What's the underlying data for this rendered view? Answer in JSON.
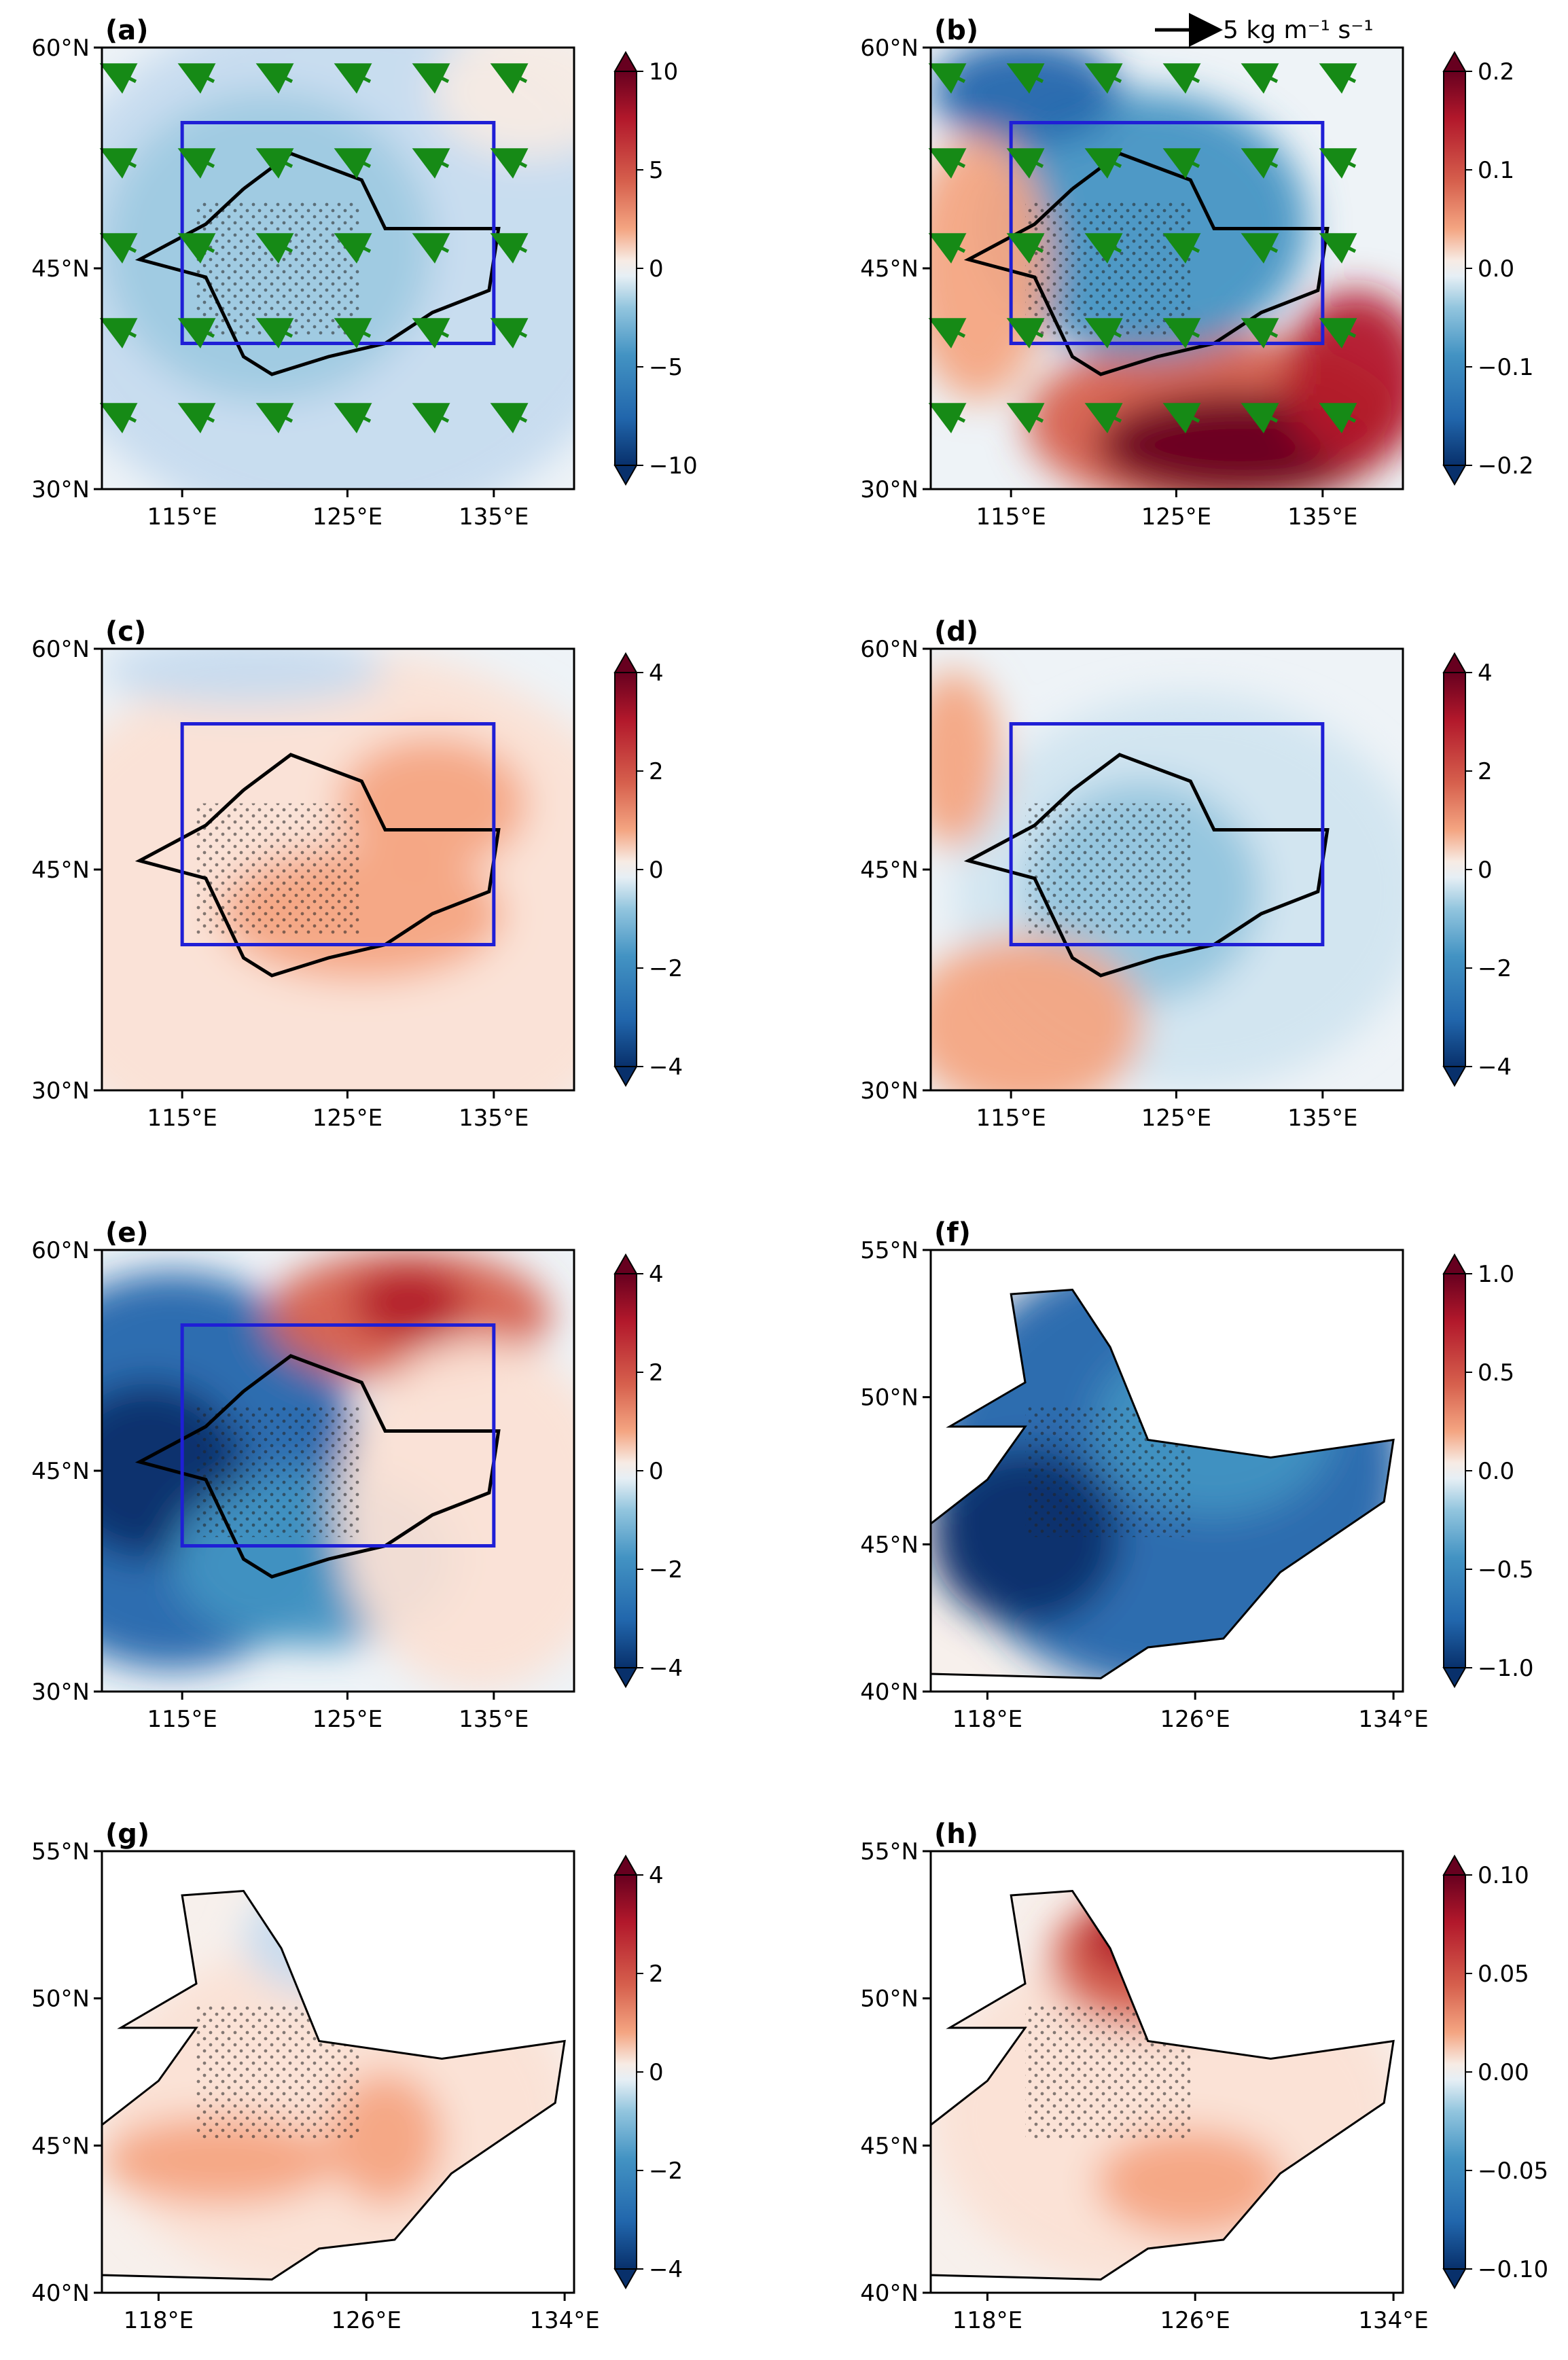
{
  "figure": {
    "vector_scale_label": "5 kg m⁻¹ s⁻¹",
    "panels": [
      {
        "id": "a",
        "label": "(a)",
        "lat_ticks": [
          "60°N",
          "45°N",
          "30°N"
        ],
        "lon_ticks": [
          "115°E",
          "125°E",
          "135°E"
        ],
        "colorbar_ticks": [
          "10",
          "5",
          "0",
          "−5",
          "−10"
        ],
        "theme": "neg",
        "vectors": true,
        "region": "box"
      },
      {
        "id": "b",
        "label": "(b)",
        "lat_ticks": [
          "60°N",
          "45°N",
          "30°N"
        ],
        "lon_ticks": [
          "115°E",
          "125°E",
          "135°E"
        ],
        "colorbar_ticks": [
          "0.2",
          "0.1",
          "0.0",
          "−0.1",
          "−0.2"
        ],
        "theme": "mixed",
        "vectors": true,
        "region": "box"
      },
      {
        "id": "c",
        "label": "(c)",
        "lat_ticks": [
          "60°N",
          "45°N",
          "30°N"
        ],
        "lon_ticks": [
          "115°E",
          "125°E",
          "135°E"
        ],
        "colorbar_ticks": [
          "4",
          "2",
          "0",
          "−2",
          "−4"
        ],
        "theme": "pos",
        "vectors": false,
        "region": "box"
      },
      {
        "id": "d",
        "label": "(d)",
        "lat_ticks": [
          "60°N",
          "45°N",
          "30°N"
        ],
        "lon_ticks": [
          "115°E",
          "125°E",
          "135°E"
        ],
        "colorbar_ticks": [
          "4",
          "2",
          "0",
          "−2",
          "−4"
        ],
        "theme": "neg_light",
        "vectors": false,
        "region": "box"
      },
      {
        "id": "e",
        "label": "(e)",
        "lat_ticks": [
          "60°N",
          "45°N",
          "30°N"
        ],
        "lon_ticks": [
          "115°E",
          "125°E",
          "135°E"
        ],
        "colorbar_ticks": [
          "4",
          "2",
          "0",
          "−2",
          "−4"
        ],
        "theme": "dipole",
        "vectors": false,
        "region": "box"
      },
      {
        "id": "f",
        "label": "(f)",
        "lat_ticks": [
          "55°N",
          "50°N",
          "45°N",
          "40°N"
        ],
        "lon_ticks": [
          "118°E",
          "126°E",
          "134°E"
        ],
        "colorbar_ticks": [
          "1.0",
          "0.5",
          "0.0",
          "−0.5",
          "−1.0"
        ],
        "theme": "deepneg",
        "vectors": false,
        "region": "ne"
      },
      {
        "id": "g",
        "label": "(g)",
        "lat_ticks": [
          "55°N",
          "50°N",
          "45°N",
          "40°N"
        ],
        "lon_ticks": [
          "118°E",
          "126°E",
          "134°E"
        ],
        "colorbar_ticks": [
          "4",
          "2",
          "0",
          "−2",
          "−4"
        ],
        "theme": "pos_ne",
        "vectors": false,
        "region": "ne"
      },
      {
        "id": "h",
        "label": "(h)",
        "lat_ticks": [
          "55°N",
          "50°N",
          "45°N",
          "40°N"
        ],
        "lon_ticks": [
          "118°E",
          "126°E",
          "134°E"
        ],
        "colorbar_ticks": [
          "0.10",
          "0.05",
          "0.00",
          "−0.05",
          "−0.10"
        ],
        "theme": "pos_ne_strong",
        "vectors": false,
        "region": "ne"
      }
    ]
  },
  "colors": {
    "box": "#1f1fd6",
    "vector": "#168a16",
    "coast": "#000000"
  }
}
